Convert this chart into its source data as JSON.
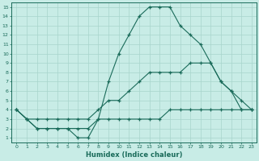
{
  "xlabel": "Humidex (Indice chaleur)",
  "xlim": [
    -0.5,
    23.5
  ],
  "ylim": [
    0.5,
    15.5
  ],
  "xticks": [
    0,
    1,
    2,
    3,
    4,
    5,
    6,
    7,
    8,
    9,
    10,
    11,
    12,
    13,
    14,
    15,
    16,
    17,
    18,
    19,
    20,
    21,
    22,
    23
  ],
  "yticks": [
    1,
    2,
    3,
    4,
    5,
    6,
    7,
    8,
    9,
    10,
    11,
    12,
    13,
    14,
    15
  ],
  "bg_color": "#c8ece6",
  "grid_color": "#a8d4cc",
  "line_color": "#1a6b5a",
  "line1_x": [
    0,
    1,
    2,
    3,
    4,
    5,
    6,
    7,
    8,
    9,
    10,
    11,
    12,
    13,
    14,
    15,
    16,
    17,
    18,
    19,
    20,
    21,
    22,
    23
  ],
  "line1_y": [
    4,
    3,
    2,
    2,
    2,
    2,
    1,
    1,
    3,
    7,
    10,
    12,
    14,
    15,
    15,
    15,
    13,
    12,
    11,
    9,
    7,
    6,
    4,
    4
  ],
  "line2_x": [
    0,
    1,
    2,
    3,
    4,
    5,
    6,
    7,
    8,
    9,
    10,
    11,
    12,
    13,
    14,
    15,
    16,
    17,
    18,
    19,
    20,
    21,
    22,
    23
  ],
  "line2_y": [
    4,
    3,
    3,
    3,
    3,
    3,
    3,
    3,
    4,
    5,
    5,
    6,
    7,
    8,
    8,
    8,
    8,
    9,
    9,
    9,
    7,
    6,
    5,
    4
  ],
  "line3_x": [
    0,
    1,
    2,
    3,
    4,
    5,
    6,
    7,
    8,
    9,
    10,
    11,
    12,
    13,
    14,
    15,
    16,
    17,
    18,
    19,
    20,
    21,
    22,
    23
  ],
  "line3_y": [
    4,
    3,
    2,
    2,
    2,
    2,
    2,
    2,
    3,
    3,
    3,
    3,
    3,
    3,
    3,
    4,
    4,
    4,
    4,
    4,
    4,
    4,
    4,
    4
  ]
}
